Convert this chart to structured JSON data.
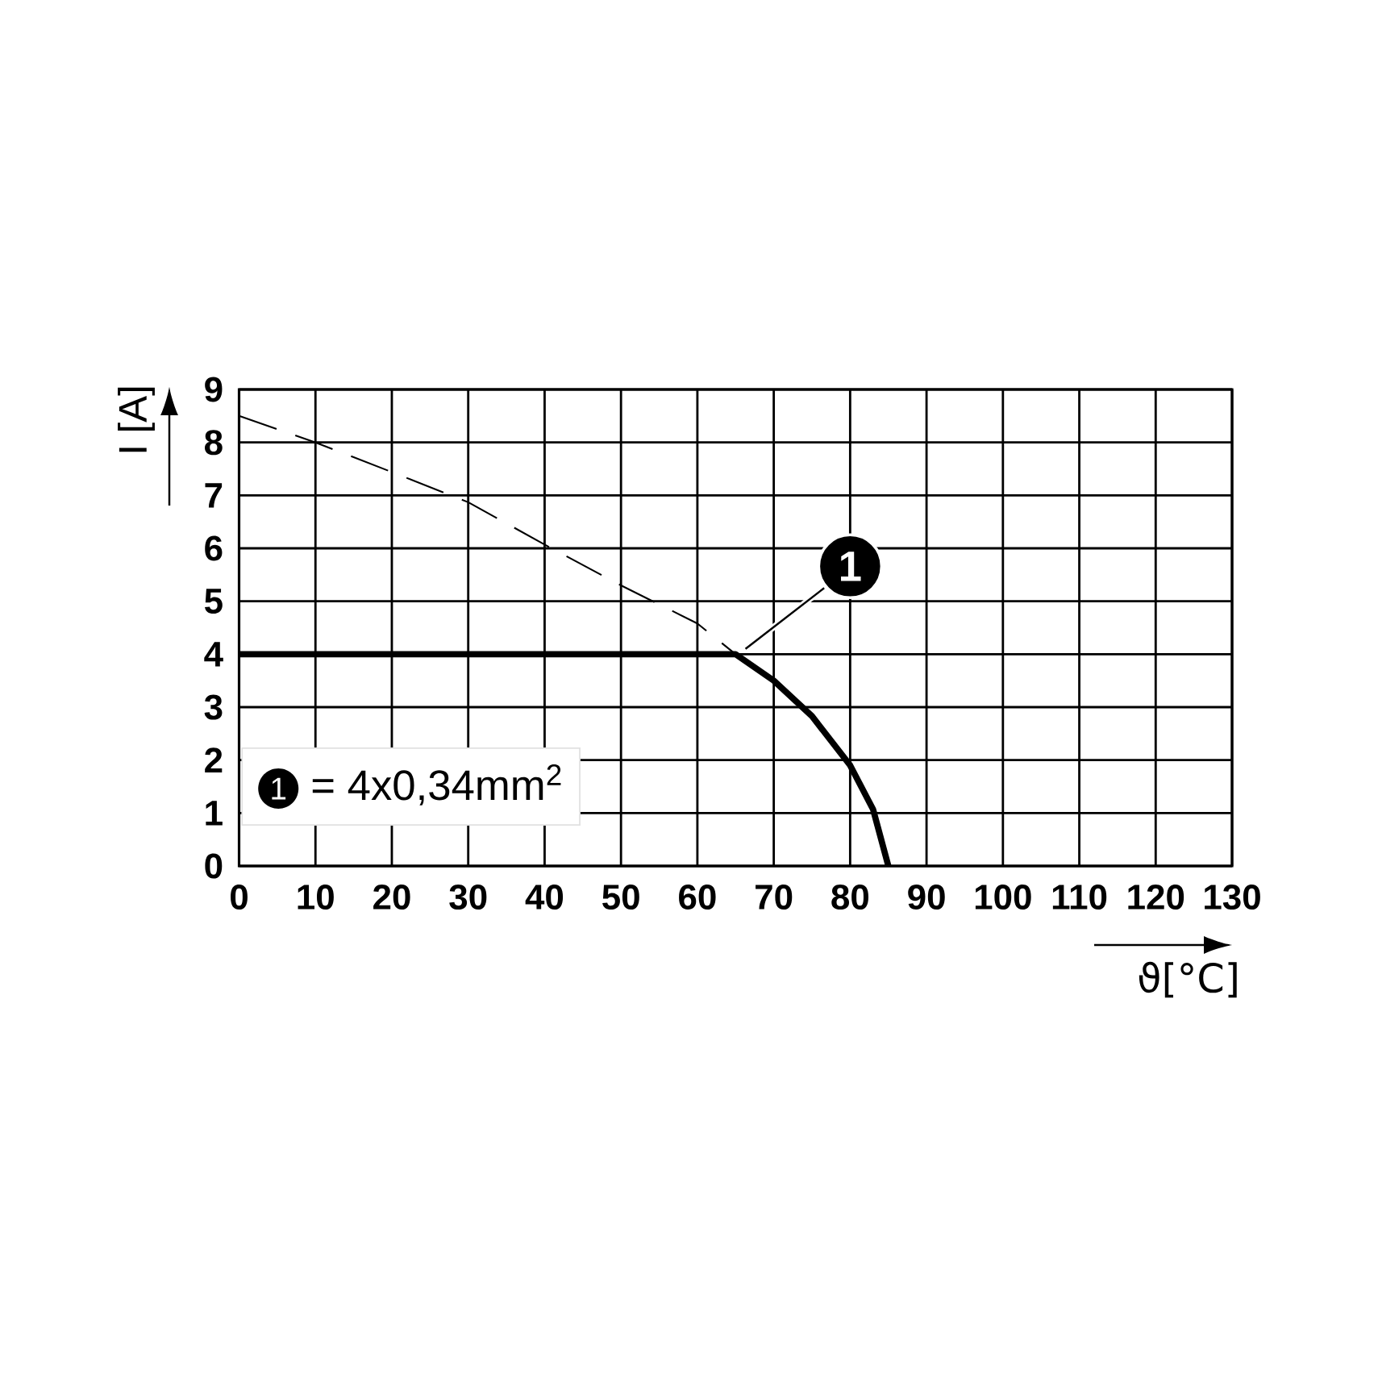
{
  "chart_data": {
    "type": "line",
    "xlabel": "ϑ[°C]",
    "ylabel": "I [A]",
    "xlim": [
      0,
      130
    ],
    "xticks": [
      0,
      10,
      20,
      30,
      40,
      50,
      60,
      70,
      80,
      90,
      100,
      110,
      120,
      130
    ],
    "ylim": [
      0,
      9
    ],
    "yticks": [
      0,
      1,
      2,
      3,
      4,
      5,
      6,
      7,
      8,
      9
    ],
    "grid": true,
    "series": [
      {
        "color": "#000000",
        "line_style": "dashed",
        "x": [
          0,
          10,
          20,
          30,
          40,
          50,
          60,
          65
        ],
        "values": [
          8.5,
          8.0,
          7.44,
          6.87,
          6.07,
          5.3,
          4.58,
          4.0
        ]
      },
      {
        "color": "#000000",
        "line_style": "solid",
        "x": [
          0,
          65,
          70,
          75,
          80,
          83,
          85
        ],
        "values": [
          4.0,
          4.0,
          3.5,
          2.83,
          1.9,
          1.07,
          0
        ]
      }
    ],
    "annotations": [
      "1",
      "1",
      "= 4x0,34mm$^{2}$"
    ]
  }
}
